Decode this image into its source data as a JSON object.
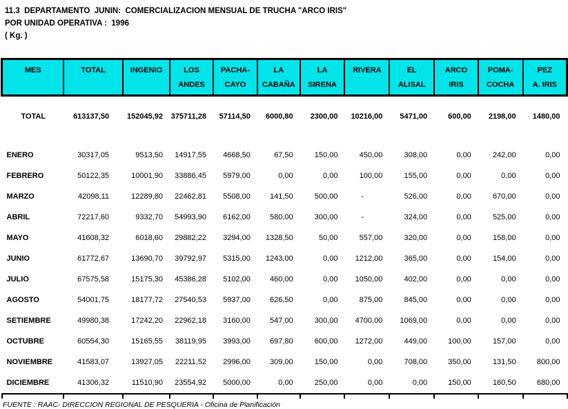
{
  "title": {
    "line1": "11.3  DEPARTAMENTO  JUNIN:  COMERCIALIZACION MENSUAL DE TRUCHA \"ARCO IRIS\"",
    "line2": "POR UNIDAD OPERATIVA :  1996",
    "line3": "( Kg. )"
  },
  "colors": {
    "header_bg": "#00e4ea",
    "border": "#000000"
  },
  "table": {
    "columns": [
      {
        "line1": "MES",
        "line2": ""
      },
      {
        "line1": "TOTAL",
        "line2": ""
      },
      {
        "line1": "INGENIO",
        "line2": ""
      },
      {
        "line1": "LOS",
        "line2": "ANDES"
      },
      {
        "line1": "PACHA-",
        "line2": "CAYO"
      },
      {
        "line1": "LA",
        "line2": "CABAÑA"
      },
      {
        "line1": "LA",
        "line2": "SIRENA"
      },
      {
        "line1": "RIVERA",
        "line2": ""
      },
      {
        "line1": "EL",
        "line2": "ALISAL"
      },
      {
        "line1": "ARCO",
        "line2": "IRIS"
      },
      {
        "line1": "POMA-",
        "line2": "COCHA"
      },
      {
        "line1": "PEZ",
        "line2": "A. IRIS"
      }
    ],
    "total_row": {
      "label": "TOTAL",
      "values": [
        "613137,50",
        "152045,92",
        "375711,28",
        "57114,50",
        "6000,80",
        "2300,00",
        "10216,00",
        "5471,00",
        "600,00",
        "2198,00",
        "1480,00"
      ]
    },
    "rows": [
      {
        "label": "ENERO",
        "values": [
          "30317,05",
          "9513,50",
          "14917,55",
          "4668,50",
          "67,50",
          "150,00",
          "450,00",
          "308,00",
          "0,00",
          "242,00",
          "0,00"
        ]
      },
      {
        "label": "FEBRERO",
        "values": [
          "50122,35",
          "10001,90",
          "33886,45",
          "5979,00",
          "0,00",
          "0,00",
          "100,00",
          "155,00",
          "0,00",
          "0,00",
          "0,00"
        ]
      },
      {
        "label": "MARZO",
        "values": [
          "42098,11",
          "12289,80",
          "22462,81",
          "5508,00",
          "141,50",
          "500,00",
          "-",
          "526,00",
          "0,00",
          "670,00",
          "0,00"
        ]
      },
      {
        "label": "ABRIL",
        "values": [
          "72217,60",
          "9332,70",
          "54993,90",
          "6162,00",
          "580,00",
          "300,00",
          "-",
          "324,00",
          "0,00",
          "525,00",
          "0,00"
        ]
      },
      {
        "label": "MAYO",
        "values": [
          "41608,32",
          "6018,60",
          "29882,22",
          "3294,00",
          "1328,50",
          "50,00",
          "557,00",
          "320,00",
          "0,00",
          "158,00",
          "0,00"
        ]
      },
      {
        "label": "JUNIO",
        "values": [
          "61772,67",
          "13690,70",
          "39792,97",
          "5315,00",
          "1243,00",
          "0,00",
          "1212,00",
          "365,00",
          "0,00",
          "154,00",
          "0,00"
        ]
      },
      {
        "label": "JULIO",
        "values": [
          "67575,58",
          "15175,30",
          "45386,28",
          "5102,00",
          "460,00",
          "0,00",
          "1050,00",
          "402,00",
          "0,00",
          "0,00",
          "0,00"
        ]
      },
      {
        "label": "AGOSTO",
        "values": [
          "54001,75",
          "18177,72",
          "27540,53",
          "5937,00",
          "626,50",
          "0,00",
          "875,00",
          "845,00",
          "0,00",
          "0,00",
          "0,00"
        ]
      },
      {
        "label": "SETIEMBRE",
        "values": [
          "49980,38",
          "17242,20",
          "22962,18",
          "3160,00",
          "547,00",
          "300,00",
          "4700,00",
          "1069,00",
          "0,00",
          "0,00",
          "0,00"
        ]
      },
      {
        "label": "OCTUBRE",
        "values": [
          "60554,30",
          "15165,55",
          "38119,95",
          "3993,00",
          "697,80",
          "600,00",
          "1272,00",
          "449,00",
          "100,00",
          "157,00",
          "0,00"
        ]
      },
      {
        "label": "NOVIEMBRE",
        "values": [
          "41583,07",
          "13927,05",
          "22211,52",
          "2996,00",
          "309,00",
          "150,00",
          "0,00",
          "708,00",
          "350,00",
          "131,50",
          "800,00"
        ]
      },
      {
        "label": "DICIEMBRE",
        "values": [
          "41306,32",
          "11510,90",
          "23554,92",
          "5000,00",
          "0,00",
          "250,00",
          "0,00",
          "0,00",
          "150,00",
          "160,50",
          "680,00"
        ]
      }
    ]
  },
  "footer": {
    "source": "FUENTE : RAAC- DIRECCION REGIONAL DE PESQUERIA - Oficina de Planificación"
  }
}
